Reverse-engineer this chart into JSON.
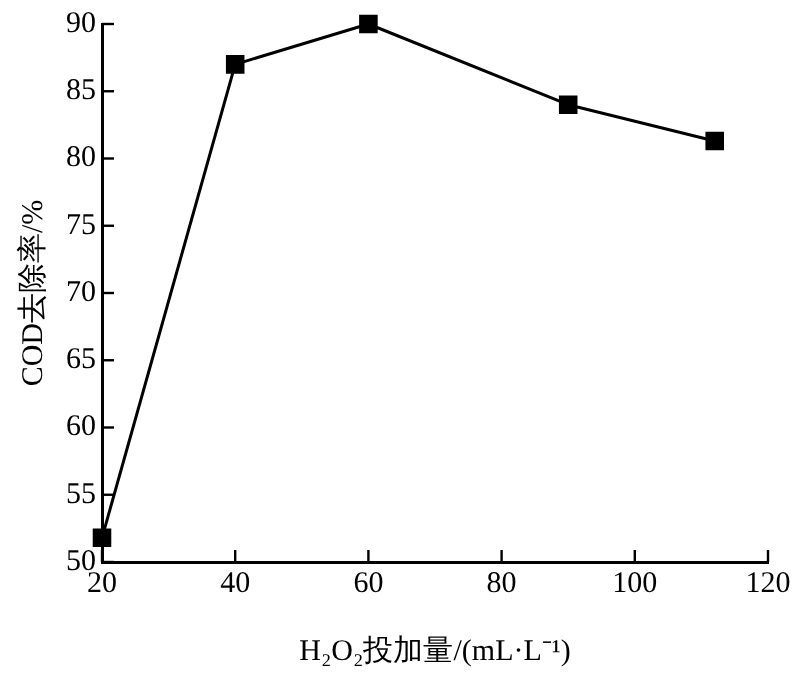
{
  "chart_data": {
    "type": "line",
    "xlabel": "H₂O₂投加量/(mL·L⁻¹)",
    "ylabel": "COD去除率/%",
    "x": [
      20,
      40,
      60,
      90,
      112
    ],
    "series": [
      {
        "color": "#000000",
        "values": [
          51.8,
          87,
          90,
          84,
          81.3
        ]
      }
    ],
    "xlim": [
      20,
      120
    ],
    "xticks": [
      20,
      40,
      60,
      80,
      100,
      120
    ],
    "ylim": [
      50,
      90
    ],
    "yticks": [
      50,
      55,
      60,
      65,
      70,
      75,
      80,
      85,
      90
    ],
    "grid": false,
    "legend": false,
    "marker": "square",
    "line_style": "solid"
  }
}
